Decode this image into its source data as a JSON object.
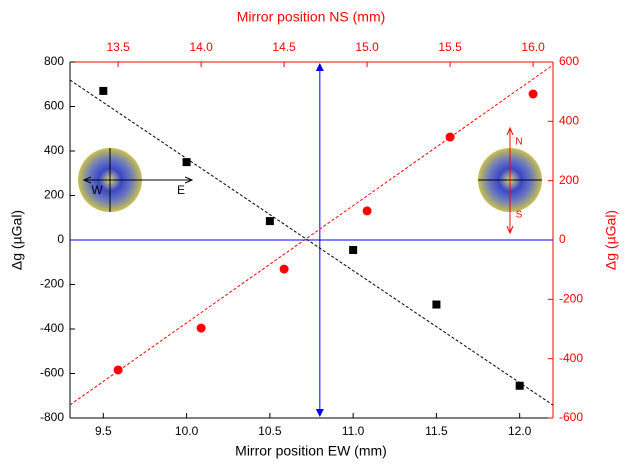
{
  "chart_data": {
    "type": "scatter",
    "x_label": "Mirror position EW (mm)",
    "x2_label": "Mirror position NS (mm)",
    "y_label": "Δg (µGal)",
    "y2_label": "Δg (µGal)",
    "xlim": [
      9.3,
      12.2
    ],
    "xticks": [
      9.5,
      {
        "value": 10,
        "label": "10.0"
      },
      10.5,
      {
        "value": 11,
        "label": "11.0"
      },
      11.5,
      {
        "value": 12,
        "label": "12.0"
      }
    ],
    "x2lim": [
      13.21,
      16.12
    ],
    "x2ticks": [
      13.5,
      {
        "value": 14,
        "label": "14.0"
      },
      14.5,
      {
        "value": 15,
        "label": "15.0"
      },
      15.5,
      {
        "value": 16,
        "label": "16.0"
      }
    ],
    "ylim": [
      -800,
      800
    ],
    "yticks": [
      -800,
      -600,
      -400,
      -200,
      0,
      200,
      400,
      600,
      800
    ],
    "y2lim": [
      -600,
      600
    ],
    "y2ticks": [
      -600,
      -400,
      -200,
      0,
      200,
      400,
      600
    ],
    "axis_color": "#000000",
    "axis2_color": "#ff0000",
    "series": [
      {
        "color": "#000000",
        "marker": "square",
        "x": [
          9.5,
          10.0,
          10.5,
          11.0,
          11.5,
          12.0
        ],
        "values": [
          670,
          350,
          85,
          -45,
          -290,
          -655
        ]
      },
      {
        "color": "#ff0000",
        "marker": "circle",
        "axis": "y2",
        "xaxis": "x2",
        "x": [
          13.5,
          14.0,
          14.5,
          15.0,
          15.5,
          16.0
        ],
        "values": [
          -438,
          -297,
          -98,
          98,
          347,
          492
        ]
      }
    ],
    "fit_lines": [
      {
        "color": "#000000",
        "x": [
          9.3,
          12.2
        ],
        "values": [
          719,
          -742
        ]
      },
      {
        "color": "#ff0000",
        "axis": "y2",
        "xaxis": "x2",
        "x": [
          13.21,
          16.12
        ],
        "values": [
          -556,
          590
        ]
      }
    ],
    "reference_lines": {
      "color": "#0000ff",
      "x": 10.8,
      "y": 0
    },
    "annotations": [
      "W",
      "E",
      "N",
      "S"
    ]
  }
}
